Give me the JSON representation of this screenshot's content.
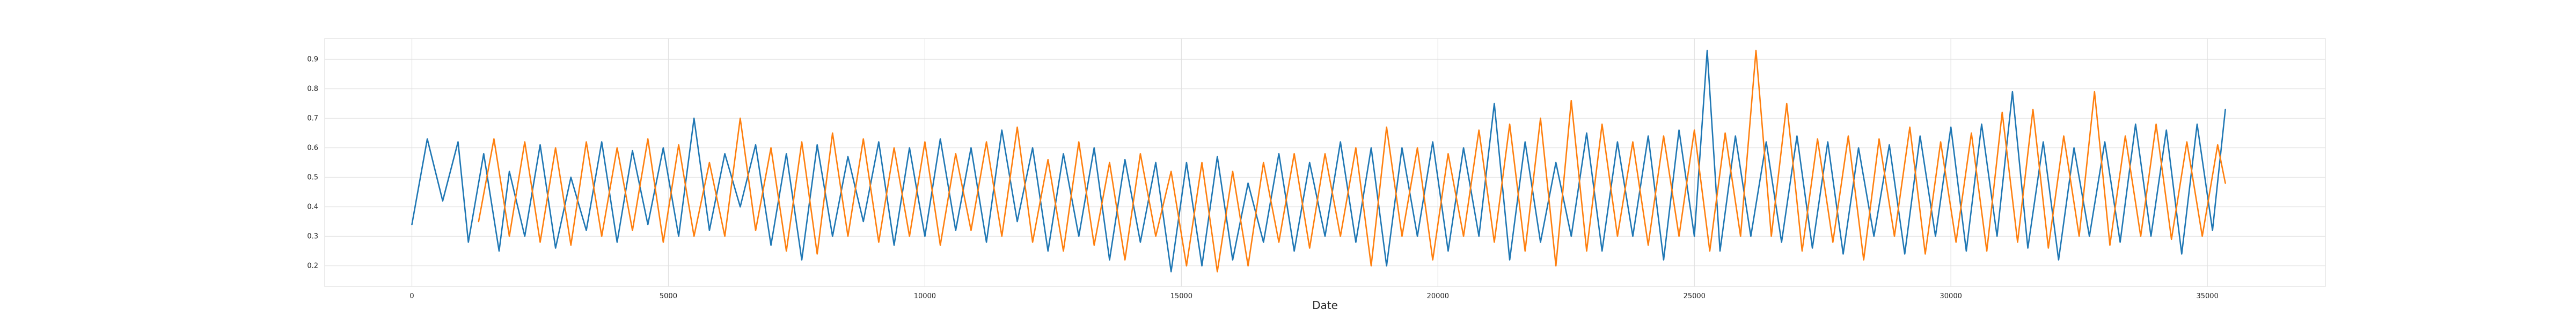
{
  "chart_data": {
    "type": "line",
    "title": "",
    "xlabel": "Date",
    "ylabel": "",
    "xlim": [
      -1700,
      37300
    ],
    "ylim": [
      0.13,
      0.97
    ],
    "xticks": [
      0,
      5000,
      10000,
      15000,
      20000,
      25000,
      30000,
      35000
    ],
    "xtick_labels": [
      "0",
      "5000",
      "10000",
      "15000",
      "20000",
      "25000",
      "30000",
      "35000"
    ],
    "yticks": [
      0.2,
      0.3,
      0.4,
      0.5,
      0.6,
      0.7,
      0.8,
      0.9
    ],
    "ytick_labels": [
      "0.2",
      "0.3",
      "0.4",
      "0.5",
      "0.6",
      "0.7",
      "0.8",
      "0.9"
    ],
    "grid": true,
    "legend": "none",
    "series": [
      {
        "color": "#1f77b4",
        "x": [
          0,
          300,
          600,
          900,
          1100,
          1400,
          1700,
          1900,
          2200,
          2500,
          2800,
          3100,
          3400,
          3700,
          4000,
          4300,
          4600,
          4900,
          5200,
          5500,
          5800,
          6100,
          6400,
          6700,
          7000,
          7300,
          7600,
          7900,
          8200,
          8500,
          8800,
          9100,
          9400,
          9700,
          10000,
          10300,
          10600,
          10900,
          11200,
          11500,
          11800,
          12100,
          12400,
          12700,
          13000,
          13300,
          13600,
          13900,
          14200,
          14500,
          14800,
          15100,
          15400,
          15700,
          16000,
          16300,
          16600,
          16900,
          17200,
          17500,
          17800,
          18100,
          18400,
          18700,
          19000,
          19300,
          19600,
          19900,
          20200,
          20500,
          20800,
          21100,
          21400,
          21700,
          22000,
          22300,
          22600,
          22900,
          23200,
          23500,
          23800,
          24100,
          24400,
          24700,
          25000,
          25250,
          25500,
          25800,
          26100,
          26400,
          26700,
          27000,
          27300,
          27600,
          27900,
          28200,
          28500,
          28800,
          29100,
          29400,
          29700,
          30000,
          30300,
          30600,
          30900,
          31200,
          31500,
          31800,
          32100,
          32400,
          32700,
          33000,
          33300,
          33600,
          33900,
          34200,
          34500,
          34800,
          35100,
          35350
        ],
        "y": [
          0.34,
          0.63,
          0.42,
          0.62,
          0.28,
          0.58,
          0.25,
          0.52,
          0.3,
          0.61,
          0.26,
          0.5,
          0.32,
          0.62,
          0.28,
          0.59,
          0.34,
          0.6,
          0.3,
          0.7,
          0.32,
          0.58,
          0.4,
          0.61,
          0.27,
          0.58,
          0.22,
          0.61,
          0.3,
          0.57,
          0.35,
          0.62,
          0.27,
          0.6,
          0.3,
          0.63,
          0.32,
          0.6,
          0.28,
          0.66,
          0.35,
          0.6,
          0.25,
          0.58,
          0.3,
          0.6,
          0.22,
          0.56,
          0.28,
          0.55,
          0.18,
          0.55,
          0.2,
          0.57,
          0.22,
          0.48,
          0.28,
          0.58,
          0.25,
          0.55,
          0.3,
          0.62,
          0.28,
          0.6,
          0.2,
          0.6,
          0.3,
          0.62,
          0.25,
          0.6,
          0.3,
          0.75,
          0.22,
          0.62,
          0.28,
          0.55,
          0.3,
          0.65,
          0.25,
          0.62,
          0.3,
          0.64,
          0.22,
          0.66,
          0.3,
          0.93,
          0.25,
          0.64,
          0.3,
          0.62,
          0.28,
          0.64,
          0.26,
          0.62,
          0.24,
          0.6,
          0.3,
          0.61,
          0.24,
          0.64,
          0.3,
          0.67,
          0.25,
          0.68,
          0.3,
          0.79,
          0.26,
          0.62,
          0.22,
          0.6,
          0.3,
          0.62,
          0.28,
          0.68,
          0.3,
          0.66,
          0.24,
          0.68,
          0.32,
          0.73
        ]
      },
      {
        "color": "#ff7f0e",
        "x": [
          1300,
          1600,
          1900,
          2200,
          2500,
          2800,
          3100,
          3400,
          3700,
          4000,
          4300,
          4600,
          4900,
          5200,
          5500,
          5800,
          6100,
          6400,
          6700,
          7000,
          7300,
          7600,
          7900,
          8200,
          8500,
          8800,
          9100,
          9400,
          9700,
          10000,
          10300,
          10600,
          10900,
          11200,
          11500,
          11800,
          12100,
          12400,
          12700,
          13000,
          13300,
          13600,
          13900,
          14200,
          14500,
          14800,
          15100,
          15400,
          15700,
          16000,
          16300,
          16600,
          16900,
          17200,
          17500,
          17800,
          18100,
          18400,
          18700,
          19000,
          19300,
          19600,
          19900,
          20200,
          20500,
          20800,
          21100,
          21400,
          21700,
          22000,
          22300,
          22600,
          22900,
          23200,
          23500,
          23800,
          24100,
          24400,
          24700,
          25000,
          25300,
          25600,
          25900,
          26200,
          26500,
          26800,
          27100,
          27400,
          27700,
          28000,
          28300,
          28600,
          28900,
          29200,
          29500,
          29800,
          30100,
          30400,
          30700,
          31000,
          31300,
          31600,
          31900,
          32200,
          32500,
          32800,
          33100,
          33400,
          33700,
          34000,
          34300,
          34600,
          34900,
          35200,
          35350
        ],
        "y": [
          0.35,
          0.63,
          0.3,
          0.62,
          0.28,
          0.6,
          0.27,
          0.62,
          0.3,
          0.6,
          0.32,
          0.63,
          0.28,
          0.61,
          0.3,
          0.55,
          0.3,
          0.7,
          0.32,
          0.6,
          0.25,
          0.62,
          0.24,
          0.65,
          0.3,
          0.63,
          0.28,
          0.6,
          0.3,
          0.62,
          0.27,
          0.58,
          0.32,
          0.62,
          0.3,
          0.67,
          0.28,
          0.56,
          0.25,
          0.62,
          0.27,
          0.55,
          0.22,
          0.58,
          0.3,
          0.52,
          0.2,
          0.55,
          0.18,
          0.52,
          0.2,
          0.55,
          0.28,
          0.58,
          0.26,
          0.58,
          0.3,
          0.6,
          0.2,
          0.67,
          0.3,
          0.6,
          0.22,
          0.58,
          0.3,
          0.66,
          0.28,
          0.68,
          0.25,
          0.7,
          0.2,
          0.76,
          0.25,
          0.68,
          0.3,
          0.62,
          0.27,
          0.64,
          0.3,
          0.66,
          0.25,
          0.65,
          0.3,
          0.93,
          0.3,
          0.75,
          0.25,
          0.63,
          0.28,
          0.64,
          0.22,
          0.63,
          0.3,
          0.67,
          0.24,
          0.62,
          0.28,
          0.65,
          0.25,
          0.72,
          0.28,
          0.73,
          0.26,
          0.64,
          0.3,
          0.79,
          0.27,
          0.64,
          0.3,
          0.68,
          0.29,
          0.62,
          0.3,
          0.61,
          0.48
        ]
      }
    ]
  }
}
